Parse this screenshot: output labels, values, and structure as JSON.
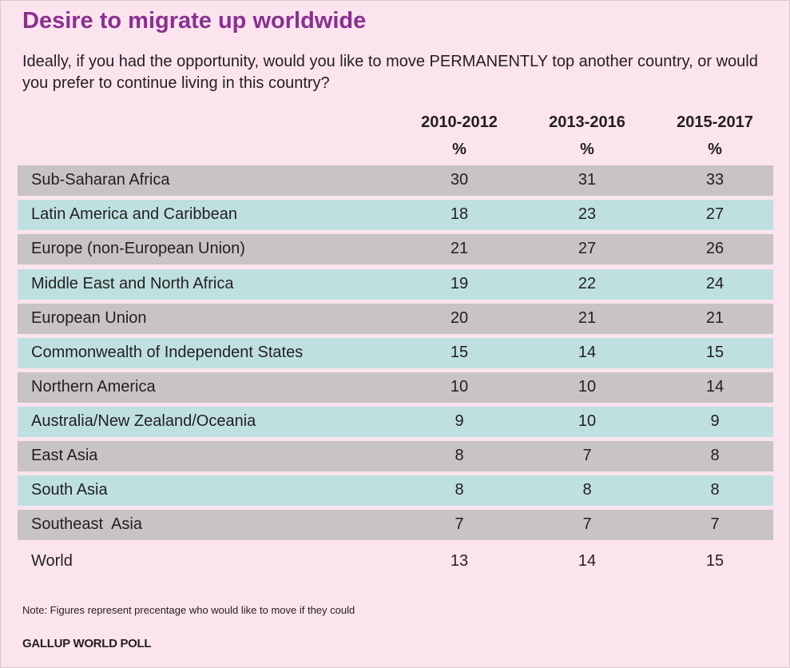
{
  "chart_data": {
    "type": "table",
    "title": "Desire to migrate up worldwide",
    "question": "Ideally, if you had the opportunity, would you like to move PERMANENTLY top another country, or would you prefer to continue living in this country?",
    "columns": [
      "2010-2012",
      "2013-2016",
      "2015-2017"
    ],
    "unit": "%",
    "rows": [
      {
        "label": "Sub-Saharan Africa",
        "values": [
          30,
          31,
          33
        ],
        "shade": "gray"
      },
      {
        "label": "Latin America and Caribbean",
        "values": [
          18,
          23,
          27
        ],
        "shade": "teal"
      },
      {
        "label": "Europe (non-European Union)",
        "values": [
          21,
          27,
          26
        ],
        "shade": "gray"
      },
      {
        "label": "Middle East and North Africa",
        "values": [
          19,
          22,
          24
        ],
        "shade": "teal"
      },
      {
        "label": "European Union",
        "values": [
          20,
          21,
          21
        ],
        "shade": "gray"
      },
      {
        "label": "Commonwealth of Independent States",
        "values": [
          15,
          14,
          15
        ],
        "shade": "teal"
      },
      {
        "label": "Northern America",
        "values": [
          10,
          10,
          14
        ],
        "shade": "gray"
      },
      {
        "label": "Australia/New Zealand/Oceania",
        "values": [
          9,
          10,
          9
        ],
        "shade": "teal"
      },
      {
        "label": "East Asia",
        "values": [
          8,
          7,
          8
        ],
        "shade": "gray"
      },
      {
        "label": "South Asia",
        "values": [
          8,
          8,
          8
        ],
        "shade": "teal"
      },
      {
        "label": "Southeast  Asia",
        "values": [
          7,
          7,
          7
        ],
        "shade": "gray"
      },
      {
        "label": "World",
        "values": [
          13,
          14,
          15
        ],
        "shade": "plain"
      }
    ],
    "note": "Note: Figures represent precentage who would like to move if they could",
    "source": "GALLUP WORLD POLL"
  },
  "colors": {
    "title": "#8a2f91",
    "background": "#fce4ee",
    "row_gray": "#c8c3c4",
    "row_teal": "#bfe0e0"
  }
}
